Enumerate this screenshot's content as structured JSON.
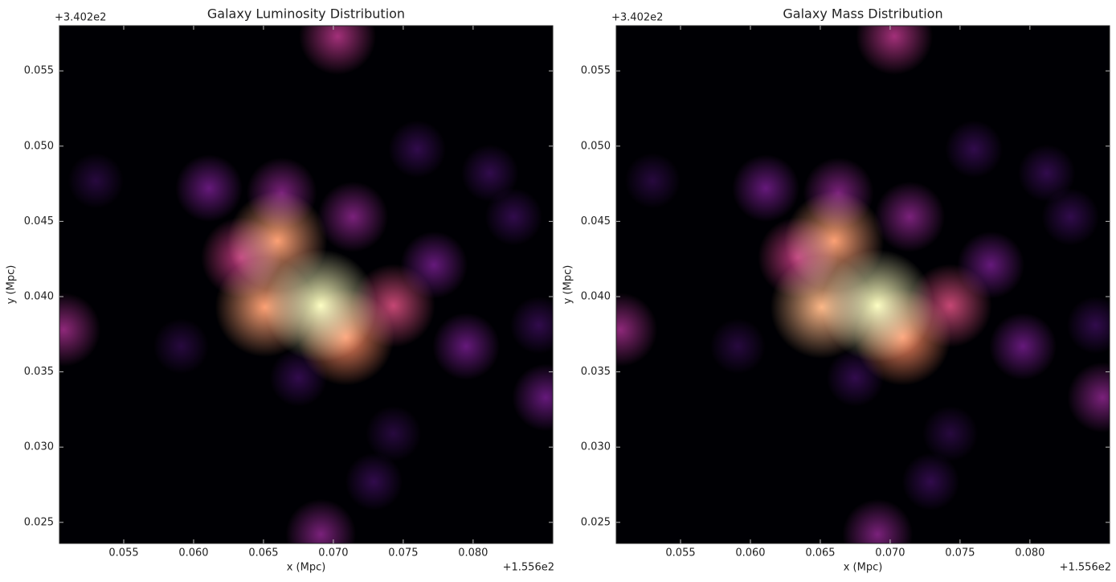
{
  "chart_data": [
    {
      "type": "heatmap",
      "title": "Galaxy Luminosity Distribution",
      "x_label": "x (Mpc)",
      "y_label": "y (Mpc)",
      "x_offset": "+1.556e2",
      "y_offset": "+3.402e2",
      "colormap": "magma",
      "xlim": [
        0.0504,
        0.0857
      ],
      "ylim": [
        0.0236,
        0.058
      ],
      "xticks": [
        {
          "value": 0.055,
          "label": "0.055"
        },
        {
          "value": 0.06,
          "label": "0.060"
        },
        {
          "value": 0.065,
          "label": "0.065"
        },
        {
          "value": 0.07,
          "label": "0.070"
        },
        {
          "value": 0.075,
          "label": "0.075"
        },
        {
          "value": 0.08,
          "label": "0.080"
        }
      ],
      "yticks": [
        {
          "value": 0.025,
          "label": "0.025"
        },
        {
          "value": 0.03,
          "label": "0.030"
        },
        {
          "value": 0.035,
          "label": "0.035"
        },
        {
          "value": 0.04,
          "label": "0.040"
        },
        {
          "value": 0.045,
          "label": "0.045"
        },
        {
          "value": 0.05,
          "label": "0.050"
        },
        {
          "value": 0.055,
          "label": "0.055"
        }
      ],
      "blobs": {
        "x": [
          0.0691,
          0.066,
          0.0651,
          0.0709,
          0.0743,
          0.0634,
          0.0663,
          0.0714,
          0.0772,
          0.0611,
          0.0795,
          0.0703,
          0.0691,
          0.0507,
          0.0852,
          0.076,
          0.0812,
          0.053,
          0.0591,
          0.0729,
          0.0743,
          0.0847,
          0.0829,
          0.0675
        ],
        "y": [
          0.0394,
          0.0437,
          0.0393,
          0.0373,
          0.0394,
          0.0426,
          0.0469,
          0.0453,
          0.0421,
          0.0472,
          0.0367,
          0.0573,
          0.0242,
          0.0378,
          0.0333,
          0.0498,
          0.0482,
          0.0477,
          0.0367,
          0.0277,
          0.0309,
          0.0381,
          0.0453,
          0.0346
        ],
        "intensity": [
          1.0,
          0.8,
          0.8,
          0.75,
          0.55,
          0.5,
          0.35,
          0.35,
          0.3,
          0.3,
          0.3,
          0.45,
          0.35,
          0.4,
          0.3,
          0.15,
          0.15,
          0.12,
          0.12,
          0.15,
          0.12,
          0.15,
          0.15,
          0.15
        ]
      }
    },
    {
      "type": "heatmap",
      "title": "Galaxy Mass Distribution",
      "x_label": "x (Mpc)",
      "y_label": "y (Mpc)",
      "x_offset": "+1.556e2",
      "y_offset": "+3.402e2",
      "colormap": "magma",
      "xlim": [
        0.0504,
        0.0857
      ],
      "ylim": [
        0.0236,
        0.058
      ],
      "xticks": [
        {
          "value": 0.055,
          "label": "0.055"
        },
        {
          "value": 0.06,
          "label": "0.060"
        },
        {
          "value": 0.065,
          "label": "0.065"
        },
        {
          "value": 0.07,
          "label": "0.070"
        },
        {
          "value": 0.075,
          "label": "0.075"
        },
        {
          "value": 0.08,
          "label": "0.080"
        }
      ],
      "yticks": [
        {
          "value": 0.025,
          "label": "0.025"
        },
        {
          "value": 0.03,
          "label": "0.030"
        },
        {
          "value": 0.035,
          "label": "0.035"
        },
        {
          "value": 0.04,
          "label": "0.040"
        },
        {
          "value": 0.045,
          "label": "0.045"
        },
        {
          "value": 0.05,
          "label": "0.050"
        },
        {
          "value": 0.055,
          "label": "0.055"
        }
      ],
      "blobs": {
        "x": [
          0.0691,
          0.066,
          0.0651,
          0.0709,
          0.0743,
          0.0634,
          0.0663,
          0.0714,
          0.0772,
          0.0611,
          0.0795,
          0.0703,
          0.0691,
          0.0507,
          0.0852,
          0.076,
          0.0812,
          0.053,
          0.0591,
          0.0729,
          0.0743,
          0.0847,
          0.0829,
          0.0675
        ],
        "y": [
          0.0394,
          0.0437,
          0.0393,
          0.0373,
          0.0394,
          0.0426,
          0.0469,
          0.0453,
          0.0421,
          0.0472,
          0.0367,
          0.0573,
          0.0242,
          0.0378,
          0.0333,
          0.0498,
          0.0482,
          0.0477,
          0.0367,
          0.0277,
          0.0309,
          0.0381,
          0.0453,
          0.0346
        ],
        "intensity": [
          1.0,
          0.8,
          0.85,
          0.75,
          0.55,
          0.5,
          0.35,
          0.35,
          0.3,
          0.3,
          0.3,
          0.45,
          0.35,
          0.4,
          0.35,
          0.15,
          0.15,
          0.12,
          0.12,
          0.15,
          0.12,
          0.15,
          0.15,
          0.15
        ]
      }
    }
  ]
}
